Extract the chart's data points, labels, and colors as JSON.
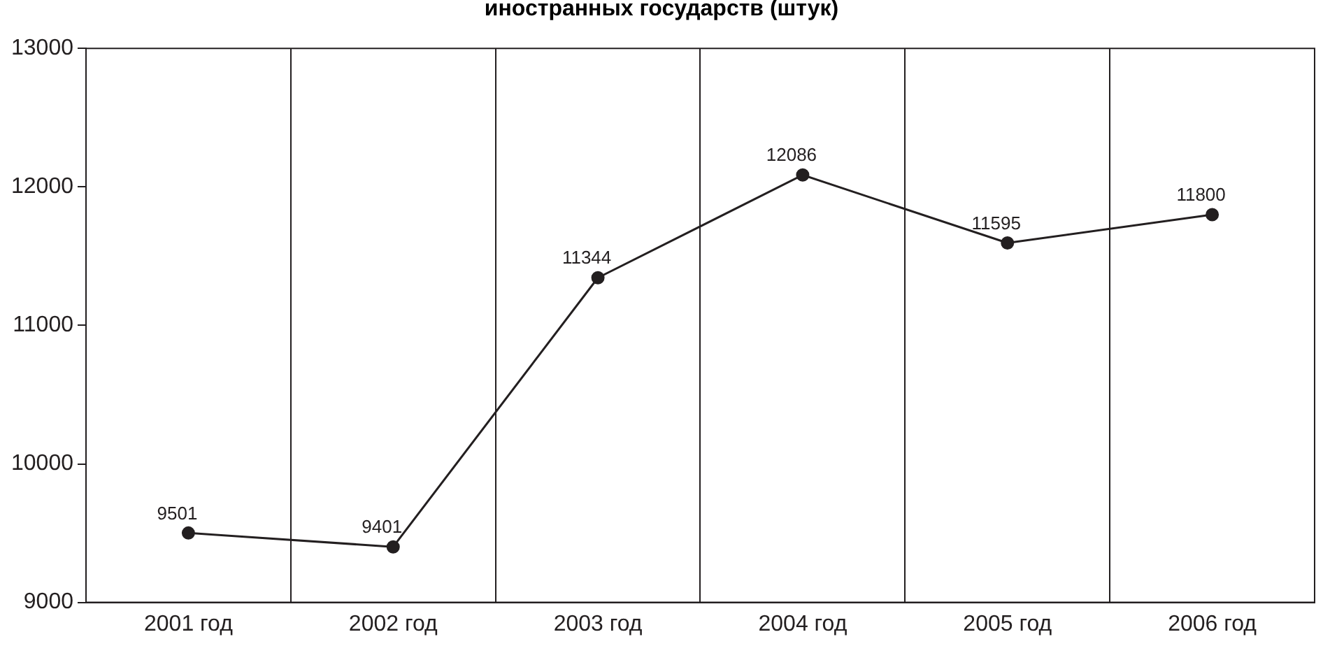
{
  "chart_data": {
    "type": "line",
    "title": "иностранных государств (штук)",
    "categories": [
      "2001 год",
      "2002 год",
      "2003 год",
      "2004 год",
      "2005 год",
      "2006 год"
    ],
    "series": [
      {
        "color": "#231f20",
        "values": [
          9501,
          9401,
          11344,
          12086,
          11595,
          11800
        ]
      }
    ],
    "ylim": [
      9000,
      13000
    ],
    "yticks": [
      9000,
      10000,
      11000,
      12000,
      13000
    ],
    "grid": "x",
    "marker": "circle",
    "line_style": "solid",
    "data_labels": true
  }
}
